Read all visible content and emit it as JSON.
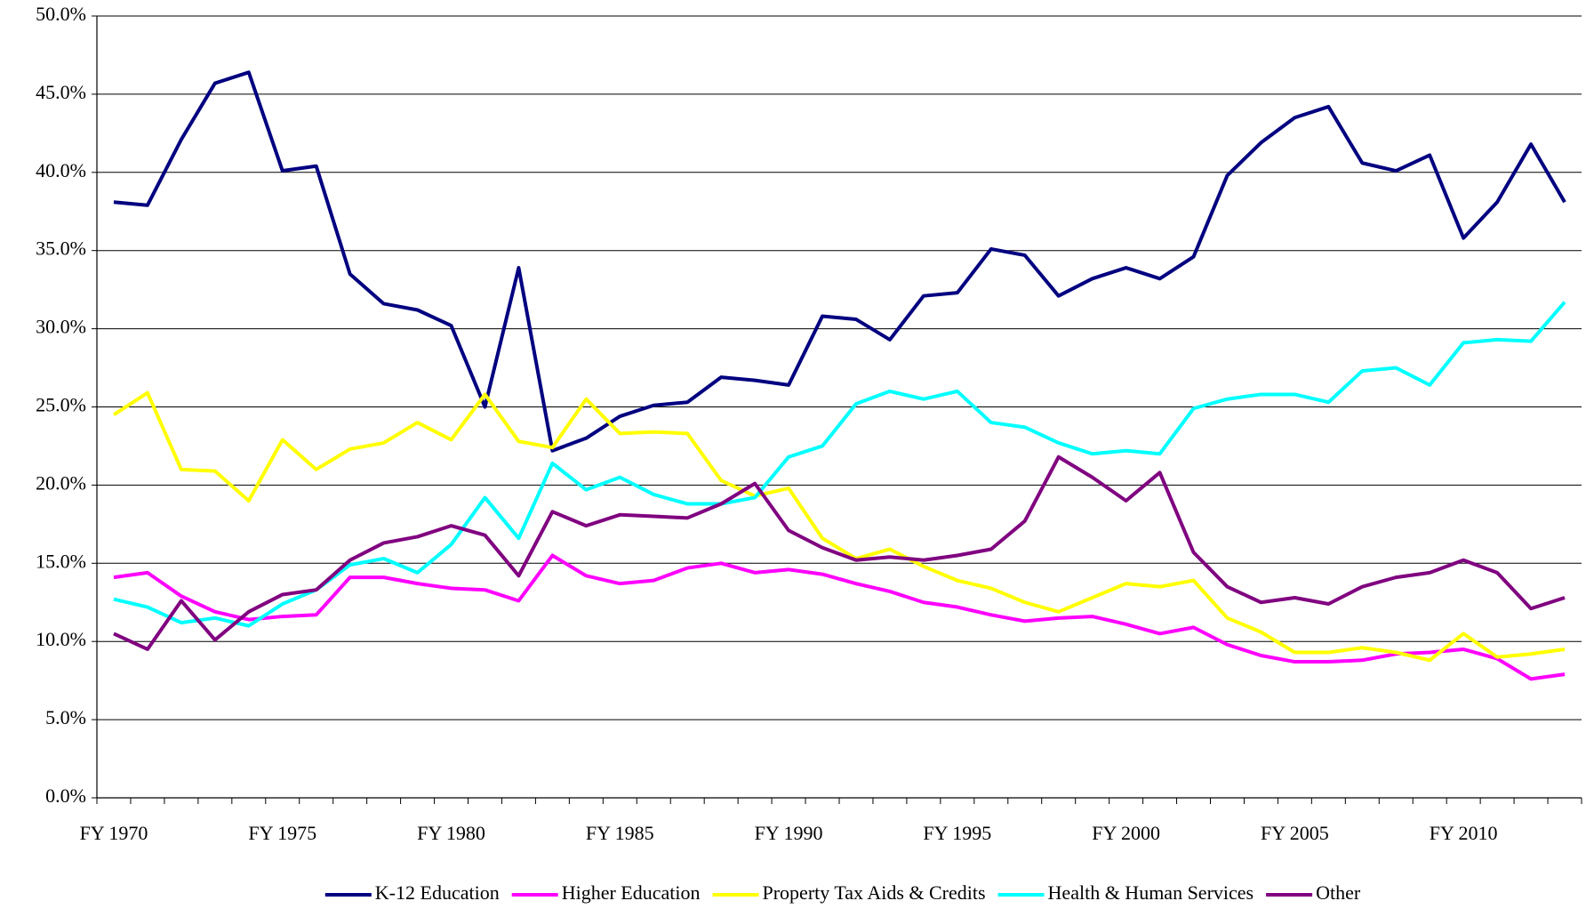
{
  "chart_data": {
    "type": "line",
    "categories": [
      "FY 1970",
      null,
      null,
      null,
      null,
      "FY 1975",
      null,
      null,
      null,
      null,
      "FY 1980",
      null,
      null,
      null,
      null,
      "FY 1985",
      null,
      null,
      null,
      null,
      "FY 1990",
      null,
      null,
      null,
      null,
      "FY 1995",
      null,
      null,
      null,
      null,
      "FY 2000",
      null,
      null,
      null,
      null,
      "FY 2005",
      null,
      null,
      null,
      null,
      "FY 2010",
      null,
      null,
      null
    ],
    "series": [
      {
        "name": "K-12 Education",
        "color": "#000080",
        "values": [
          38.1,
          37.9,
          42.1,
          45.7,
          46.4,
          40.1,
          40.4,
          33.5,
          31.6,
          31.2,
          30.2,
          25.0,
          33.9,
          22.2,
          23.0,
          24.4,
          25.1,
          25.3,
          26.9,
          26.7,
          26.4,
          30.8,
          30.6,
          29.3,
          32.1,
          32.3,
          35.1,
          34.7,
          32.1,
          33.2,
          33.9,
          33.2,
          34.6,
          39.8,
          41.9,
          43.5,
          44.2,
          40.6,
          40.1,
          41.1,
          35.8,
          38.1,
          41.8,
          38.1
        ]
      },
      {
        "name": "Higher Education",
        "color": "#ff00ff",
        "values": [
          14.1,
          14.4,
          12.9,
          11.9,
          11.4,
          11.6,
          11.7,
          14.1,
          14.1,
          13.7,
          13.4,
          13.3,
          12.6,
          15.5,
          14.2,
          13.7,
          13.9,
          14.7,
          15.0,
          14.4,
          14.6,
          14.3,
          13.7,
          13.2,
          12.5,
          12.2,
          11.7,
          11.3,
          11.5,
          11.6,
          11.1,
          10.5,
          10.9,
          9.8,
          9.1,
          8.7,
          8.7,
          8.8,
          9.2,
          9.3,
          9.5,
          8.9,
          7.6,
          7.9
        ]
      },
      {
        "name": "Property Tax Aids & Credits",
        "color": "#ffff00",
        "values": [
          24.5,
          25.9,
          21.0,
          20.9,
          19.0,
          22.9,
          21.0,
          22.3,
          22.7,
          24.0,
          22.9,
          25.8,
          22.8,
          22.4,
          25.5,
          23.3,
          23.4,
          23.3,
          20.3,
          19.3,
          19.8,
          16.6,
          15.3,
          15.9,
          14.8,
          13.9,
          13.4,
          12.5,
          11.9,
          12.8,
          13.7,
          13.5,
          13.9,
          11.5,
          10.6,
          9.3,
          9.3,
          9.6,
          9.3,
          8.8,
          10.5,
          9.0,
          9.2,
          9.5
        ]
      },
      {
        "name": "Health & Human Services",
        "color": "#00ffff",
        "values": [
          12.7,
          12.2,
          11.2,
          11.5,
          11.0,
          12.4,
          13.3,
          14.9,
          15.3,
          14.4,
          16.2,
          19.2,
          16.6,
          21.4,
          19.7,
          20.5,
          19.4,
          18.8,
          18.8,
          19.2,
          21.8,
          22.5,
          25.2,
          26.0,
          25.5,
          26.0,
          24.0,
          23.7,
          22.7,
          22.0,
          22.2,
          22.0,
          24.9,
          25.5,
          25.8,
          25.8,
          25.3,
          27.3,
          27.5,
          26.4,
          29.1,
          29.3,
          29.2,
          31.7
        ]
      },
      {
        "name": "Other",
        "color": "#800080",
        "values": [
          10.5,
          9.5,
          12.6,
          10.1,
          11.9,
          13.0,
          13.3,
          15.2,
          16.3,
          16.7,
          17.4,
          16.8,
          14.2,
          18.3,
          17.4,
          18.1,
          18.0,
          17.9,
          18.8,
          20.1,
          17.1,
          16.0,
          15.2,
          15.4,
          15.2,
          15.5,
          15.9,
          17.7,
          21.8,
          20.5,
          19.0,
          20.8,
          15.7,
          13.5,
          12.5,
          12.8,
          12.4,
          13.5,
          14.1,
          14.4,
          15.2,
          14.4,
          12.1,
          12.8
        ]
      }
    ],
    "ylim": [
      0,
      50
    ],
    "yticks": [
      {
        "value": 0,
        "label": "0.0%"
      },
      {
        "value": 5,
        "label": "5.0%"
      },
      {
        "value": 10,
        "label": "10.0%"
      },
      {
        "value": 15,
        "label": "15.0%"
      },
      {
        "value": 20,
        "label": "20.0%"
      },
      {
        "value": 25,
        "label": "25.0%"
      },
      {
        "value": 30,
        "label": "30.0%"
      },
      {
        "value": 35,
        "label": "35.0%"
      },
      {
        "value": 40,
        "label": "40.0%"
      },
      {
        "value": 45,
        "label": "45.0%"
      },
      {
        "value": 50,
        "label": "50.0%"
      }
    ],
    "grid": true,
    "legend": "bottom"
  }
}
